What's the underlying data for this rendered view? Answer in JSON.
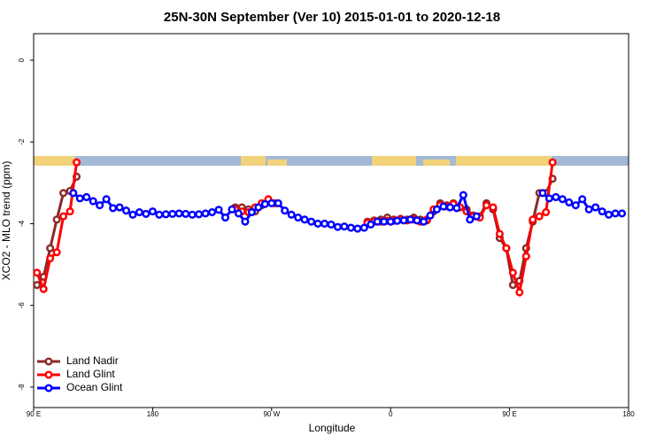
{
  "chart_data": {
    "type": "line",
    "title": "25N-30N September (Ver 10)   2015-01-01 to 2020-12-18",
    "x_label": "Longitude",
    "y_label": "XCO2 - MLO trend (ppm)",
    "xlim": [
      90,
      540
    ],
    "ylim": [
      -8.5,
      0.65
    ],
    "xticks": [
      {
        "value": 90,
        "label": "90 E"
      },
      180,
      {
        "value": 270,
        "label": "90 W"
      },
      {
        "value": 360,
        "label": "0"
      },
      {
        "value": 450,
        "label": "90 E"
      },
      {
        "value": 540,
        "label": "180"
      }
    ],
    "yticks": [
      0,
      -2,
      -4,
      -6,
      -8
    ],
    "legend": "bottom-left",
    "series": [
      {
        "name": "Land Nadir",
        "color": "#8b2a2a",
        "x": [
          92.5,
          97.5,
          102.5,
          107.5,
          112.5,
          117.5,
          122.5,
          127.5,
          132.5,
          137.5,
          142.5,
          147.5,
          152.5,
          157.5,
          162.5,
          167.5,
          172.5,
          177.5,
          182.5,
          187.5,
          192.5,
          197.5,
          202.5,
          207.5,
          212.5,
          217.5,
          222.5,
          227.5,
          232.5,
          237.5,
          242.5,
          247.5,
          252.5,
          257.5,
          262.5,
          267.5,
          272.5,
          277.5,
          282.5,
          287.5,
          292.5,
          297.5,
          302.5,
          307.5,
          312.5,
          317.5,
          322.5,
          327.5,
          332.5,
          337.5,
          342.5,
          347.5,
          352.5,
          357.5,
          362.5,
          367.5,
          372.5,
          377.5,
          382.5,
          387.5,
          392.5,
          397.5,
          402.5,
          407.5,
          412.5,
          417.5,
          422.5,
          427.5,
          432.5,
          437.5,
          442.5,
          447.5,
          452.5,
          457.5,
          462.5,
          467.5,
          472.5,
          477.5,
          482.5
        ],
        "values": [
          -5.5,
          -5.3,
          -4.6,
          -3.9,
          -3.25,
          -3.2,
          -2.85,
          null,
          null,
          null,
          null,
          null,
          null,
          null,
          null,
          null,
          null,
          null,
          null,
          null,
          null,
          null,
          null,
          null,
          null,
          null,
          null,
          null,
          null,
          null,
          -3.6,
          -3.6,
          -3.65,
          -3.7,
          -3.55,
          -3.45,
          -3.5,
          null,
          null,
          null,
          null,
          null,
          null,
          null,
          null,
          null,
          null,
          null,
          null,
          null,
          -3.95,
          -3.92,
          -3.9,
          -3.85,
          -3.9,
          -3.88,
          -3.9,
          -3.85,
          -3.9,
          -3.92,
          -3.7,
          -3.5,
          -3.55,
          -3.5,
          -3.6,
          -3.65,
          -3.8,
          -3.82,
          -3.5,
          -3.65,
          -4.35,
          -4.6,
          -5.5,
          -5.4,
          -4.6,
          -3.95,
          -3.25,
          -3.25,
          -2.9
        ]
      },
      {
        "name": "Land Glint",
        "color": "#ff0000",
        "x": [
          92.5,
          97.5,
          102.5,
          107.5,
          112.5,
          117.5,
          122.5,
          127.5,
          132.5,
          137.5,
          142.5,
          147.5,
          152.5,
          157.5,
          162.5,
          167.5,
          172.5,
          177.5,
          182.5,
          187.5,
          192.5,
          197.5,
          202.5,
          207.5,
          212.5,
          217.5,
          222.5,
          227.5,
          232.5,
          237.5,
          242.5,
          247.5,
          252.5,
          257.5,
          262.5,
          267.5,
          272.5,
          277.5,
          282.5,
          287.5,
          292.5,
          297.5,
          302.5,
          307.5,
          312.5,
          317.5,
          322.5,
          327.5,
          332.5,
          337.5,
          342.5,
          347.5,
          352.5,
          357.5,
          362.5,
          367.5,
          372.5,
          377.5,
          382.5,
          387.5,
          392.5,
          397.5,
          402.5,
          407.5,
          412.5,
          417.5,
          422.5,
          427.5,
          432.5,
          437.5,
          442.5,
          447.5,
          452.5,
          457.5,
          462.5,
          467.5,
          472.5,
          477.5,
          482.5
        ],
        "values": [
          -5.2,
          -5.6,
          -4.85,
          -4.7,
          -3.82,
          -3.7,
          -2.5,
          null,
          null,
          null,
          null,
          null,
          null,
          null,
          null,
          null,
          null,
          null,
          null,
          null,
          null,
          null,
          null,
          null,
          null,
          null,
          null,
          null,
          null,
          null,
          -3.65,
          -3.7,
          -3.72,
          -3.6,
          -3.5,
          -3.4,
          -3.5,
          null,
          null,
          null,
          null,
          null,
          null,
          null,
          null,
          null,
          null,
          null,
          null,
          null,
          -3.98,
          -3.95,
          -3.95,
          -3.93,
          -3.93,
          -3.9,
          -3.92,
          -3.9,
          -3.95,
          -3.9,
          -3.65,
          -3.55,
          -3.58,
          -3.52,
          -3.6,
          -3.7,
          -3.82,
          -3.85,
          -3.55,
          -3.6,
          -4.25,
          -4.6,
          -5.2,
          -5.68,
          -4.8,
          -3.9,
          -3.82,
          -3.72,
          -2.5
        ]
      },
      {
        "name": "Ocean Glint",
        "color": "#0000ff",
        "x": [
          120,
          125,
          130,
          135,
          140,
          145,
          150,
          155,
          160,
          165,
          170,
          175,
          180,
          185,
          190,
          195,
          200,
          205,
          210,
          215,
          220,
          225,
          230,
          235,
          240,
          245,
          250,
          255,
          260,
          265,
          270,
          275,
          280,
          285,
          290,
          295,
          300,
          305,
          310,
          315,
          320,
          325,
          330,
          335,
          340,
          345,
          350,
          355,
          360,
          365,
          370,
          375,
          380,
          385,
          390,
          395,
          400,
          405,
          410,
          415,
          420,
          425,
          430,
          435,
          440,
          445,
          450,
          455,
          460,
          465,
          470,
          475,
          480,
          485,
          490,
          495,
          500,
          505,
          510,
          515,
          520,
          525,
          530,
          535
        ],
        "values": [
          -3.25,
          -3.38,
          -3.35,
          -3.45,
          -3.55,
          -3.4,
          -3.62,
          -3.6,
          -3.68,
          -3.78,
          -3.72,
          -3.76,
          -3.7,
          -3.78,
          -3.77,
          -3.76,
          -3.75,
          -3.76,
          -3.78,
          -3.77,
          -3.75,
          -3.72,
          -3.66,
          -3.85,
          -3.65,
          -3.75,
          -3.95,
          -3.72,
          -3.6,
          -3.52,
          -3.5,
          -3.5,
          -3.68,
          -3.78,
          -3.85,
          -3.9,
          -3.95,
          -4.0,
          -4.0,
          -4.02,
          -4.08,
          -4.07,
          -4.1,
          -4.12,
          -4.1,
          -4.02,
          -3.95,
          -3.95,
          -3.95,
          -3.93,
          -3.92,
          -3.9,
          -3.92,
          -3.95,
          -3.8,
          -3.65,
          -3.58,
          -3.6,
          -3.62,
          -3.3,
          -3.9,
          -3.82,
          null,
          null,
          null,
          null,
          null,
          null,
          null,
          null,
          null,
          -3.25,
          -3.38,
          -3.35,
          -3.4,
          -3.48,
          -3.55,
          -3.4,
          -3.65,
          -3.6,
          -3.7,
          -3.78,
          -3.75,
          -3.75
        ]
      }
    ]
  }
}
